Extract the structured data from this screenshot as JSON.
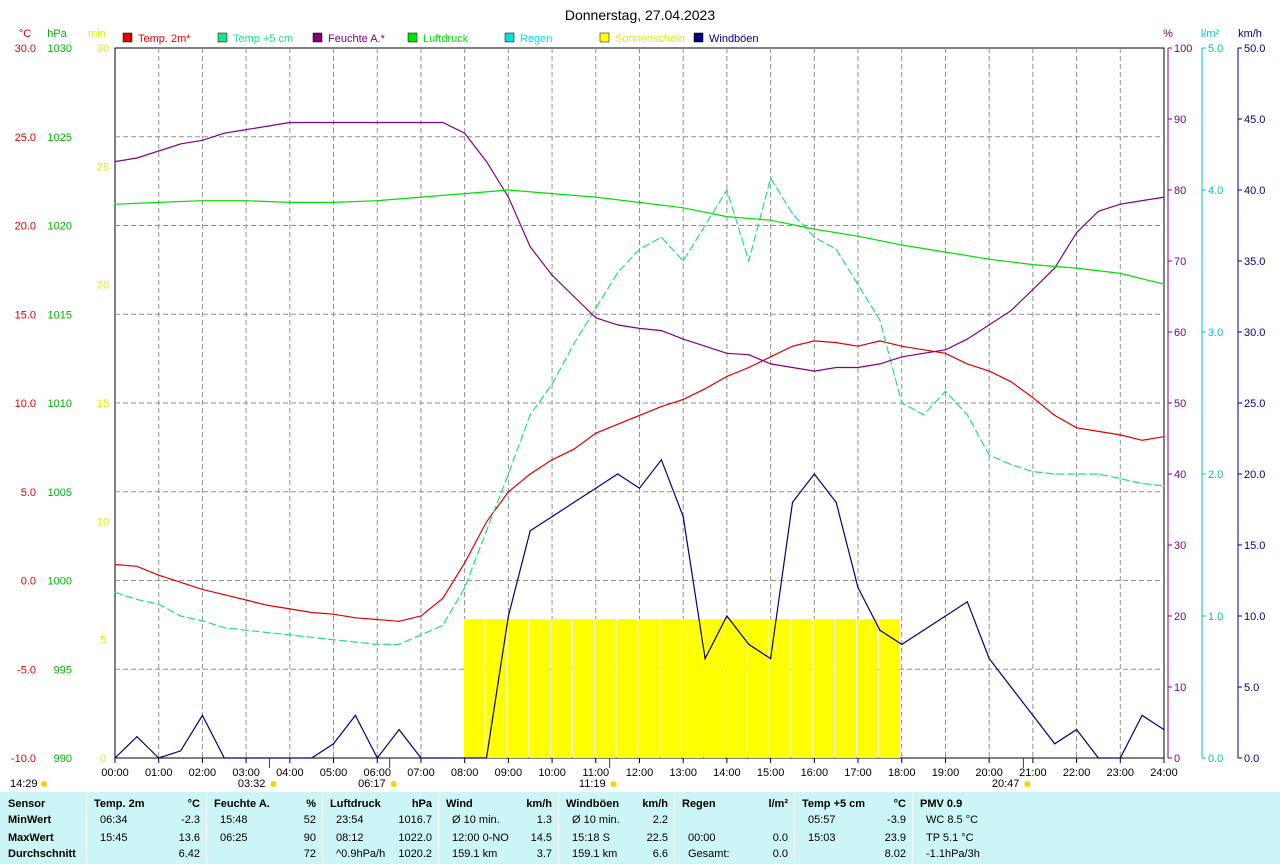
{
  "title": "Donnerstag, 27.04.2023",
  "legend": [
    {
      "label": "Temp. 2m*",
      "color": "#e00000"
    },
    {
      "label": "Temp +5 cm",
      "color": "#20e080"
    },
    {
      "label": "Feuchte A.*",
      "color": "#800080"
    },
    {
      "label": "Luftdruck",
      "color": "#00e000"
    },
    {
      "label": "Regen",
      "color": "#00e0e0"
    },
    {
      "label": "Sonnenschein",
      "color": "#ffff00"
    },
    {
      "label": "Windböen",
      "color": "#000080"
    }
  ],
  "axes": {
    "celsius": {
      "unit": "°C",
      "ticks": [
        "30.0",
        "25.0",
        "20.0",
        "15.0",
        "10.0",
        "5.0",
        "0.0",
        "-5.0",
        "-10.0"
      ],
      "color": "#e00000"
    },
    "hpa": {
      "unit": "hPa",
      "ticks": [
        "1030",
        "1025",
        "1020",
        "1015",
        "1010",
        "1005",
        "1000",
        "995",
        "990"
      ],
      "color": "#00b000"
    },
    "min": {
      "unit": "min",
      "ticks": [
        "30",
        "25",
        "20",
        "15",
        "10",
        "5",
        "0"
      ],
      "color": "#e8e800"
    },
    "percent": {
      "unit": "%",
      "ticks": [
        "100",
        "90",
        "80",
        "70",
        "60",
        "50",
        "40",
        "30",
        "20",
        "10",
        "0"
      ],
      "color": "#800080"
    },
    "rain": {
      "unit": "l/m²",
      "ticks": [
        "5.0",
        "4.0",
        "3.0",
        "2.0",
        "1.0",
        "0.0"
      ],
      "color": "#00c0c0"
    },
    "wind": {
      "unit": "km/h",
      "ticks": [
        "50.0",
        "45.0",
        "40.0",
        "35.0",
        "30.0",
        "25.0",
        "20.0",
        "15.0",
        "10.0",
        "5.0",
        "0.0"
      ],
      "color": "#000080"
    },
    "x_ticks": [
      "00:00",
      "01:00",
      "02:00",
      "03:00",
      "04:00",
      "05:00",
      "06:00",
      "07:00",
      "08:00",
      "09:00",
      "10:00",
      "11:00",
      "12:00",
      "13:00",
      "14:00",
      "15:00",
      "16:00",
      "17:00",
      "18:00",
      "19:00",
      "20:00",
      "21:00",
      "22:00",
      "23:00",
      "24:00"
    ]
  },
  "markers": {
    "left_time": "14:29",
    "moonrise": "03:32",
    "sunrise": "06:17",
    "noon": "11:19",
    "sunset": "20:47"
  },
  "chart_data": {
    "type": "line",
    "title": "Donnerstag, 27.04.2023",
    "x_unit": "hours",
    "xlim": [
      0,
      24
    ],
    "series": [
      {
        "name": "Temp. 2m*",
        "axis": "celsius",
        "ylim": [
          -10,
          30
        ],
        "color": "#e00000",
        "x": [
          0,
          0.5,
          1,
          1.5,
          2,
          2.5,
          3,
          3.5,
          4,
          4.5,
          5,
          5.5,
          6,
          6.5,
          7,
          7.5,
          8,
          8.5,
          9,
          9.5,
          10,
          10.5,
          11,
          11.5,
          12,
          12.5,
          13,
          13.5,
          14,
          14.5,
          15,
          15.5,
          16,
          16.5,
          17,
          17.5,
          18,
          18.5,
          19,
          19.5,
          20,
          20.5,
          21,
          21.5,
          22,
          22.5,
          23,
          23.5,
          24
        ],
        "y": [
          0.9,
          0.8,
          0.3,
          -0.1,
          -0.5,
          -0.8,
          -1.1,
          -1.4,
          -1.6,
          -1.8,
          -1.9,
          -2.1,
          -2.2,
          -2.3,
          -2.0,
          -1.0,
          1.0,
          3.3,
          5.0,
          6.0,
          6.8,
          7.4,
          8.3,
          8.8,
          9.3,
          9.8,
          10.2,
          10.8,
          11.5,
          12.0,
          12.6,
          13.2,
          13.5,
          13.4,
          13.2,
          13.5,
          13.2,
          13.0,
          12.8,
          12.2,
          11.8,
          11.2,
          10.3,
          9.3,
          8.6,
          8.4,
          8.2,
          7.9,
          8.1
        ]
      },
      {
        "name": "Temp +5 cm",
        "axis": "min",
        "ylim": [
          0,
          30
        ],
        "color": "#20e080",
        "x": [
          0,
          0.5,
          1,
          1.5,
          2,
          2.5,
          3,
          3.5,
          4,
          4.5,
          5,
          5.5,
          6,
          6.5,
          7,
          7.5,
          8,
          8.5,
          9,
          9.5,
          10,
          10.5,
          11,
          11.5,
          12,
          12.5,
          13,
          13.5,
          14,
          14.5,
          15,
          15.5,
          16,
          16.5,
          17,
          17.5,
          18,
          18.5,
          19,
          19.5,
          20,
          20.5,
          21,
          21.5,
          22,
          22.5,
          23,
          23.5,
          24
        ],
        "y": [
          7,
          6.7,
          6.5,
          6,
          5.8,
          5.5,
          5.4,
          5.3,
          5.2,
          5.1,
          5,
          4.9,
          4.8,
          4.8,
          5.2,
          5.6,
          7.2,
          9.6,
          12,
          14.5,
          15.8,
          17.5,
          19,
          20.5,
          21.5,
          22,
          21,
          22.5,
          24,
          21,
          24.5,
          23,
          22,
          21.5,
          20,
          18.5,
          15,
          14.5,
          15.5,
          14.5,
          12.8,
          12.4,
          12.1,
          12.0,
          12.0,
          12.0,
          11.8,
          11.6,
          11.5
        ]
      },
      {
        "name": "Feuchte A.*",
        "axis": "percent",
        "ylim": [
          0,
          100
        ],
        "color": "#800080",
        "x": [
          0,
          0.5,
          1,
          1.5,
          2,
          2.5,
          3,
          3.5,
          4,
          4.5,
          5,
          5.5,
          6,
          6.5,
          7,
          7.5,
          8,
          8.5,
          9,
          9.5,
          10,
          10.5,
          11,
          11.5,
          12,
          12.5,
          13,
          13.5,
          14,
          14.5,
          15,
          15.5,
          16,
          16.5,
          17,
          17.5,
          18,
          18.5,
          19,
          19.5,
          20,
          20.5,
          21,
          21.5,
          22,
          22.5,
          23,
          23.5,
          24
        ],
        "y": [
          84,
          84.5,
          85.5,
          86.5,
          87,
          88,
          88.5,
          89,
          89.5,
          89.5,
          89.5,
          89.5,
          89.5,
          89.5,
          89.5,
          89.5,
          88,
          84,
          79,
          72,
          68,
          65,
          62,
          61,
          60.5,
          60.2,
          59,
          58,
          57,
          56.8,
          55.5,
          55,
          54.5,
          55,
          55,
          55.5,
          56.5,
          57,
          57.5,
          59,
          61,
          63,
          66,
          69,
          74,
          77,
          78,
          78.5,
          79
        ]
      },
      {
        "name": "Luftdruck",
        "axis": "hpa",
        "ylim": [
          990,
          1030
        ],
        "color": "#00e000",
        "x": [
          0,
          1,
          2,
          3,
          4,
          5,
          6,
          7,
          8,
          9,
          10,
          11,
          12,
          13,
          14,
          15,
          16,
          17,
          18,
          19,
          20,
          21,
          22,
          23,
          24
        ],
        "y": [
          1021.2,
          1021.3,
          1021.4,
          1021.4,
          1021.3,
          1021.3,
          1021.4,
          1021.6,
          1021.8,
          1022.0,
          1021.8,
          1021.6,
          1021.3,
          1021.0,
          1020.5,
          1020.3,
          1019.8,
          1019.4,
          1018.9,
          1018.5,
          1018.1,
          1017.8,
          1017.6,
          1017.3,
          1016.7
        ]
      },
      {
        "name": "Windböen",
        "axis": "wind",
        "ylim": [
          0,
          50
        ],
        "color": "#000080",
        "x": [
          0,
          0.5,
          1,
          1.5,
          2,
          2.5,
          3,
          3.5,
          4,
          4.5,
          5,
          5.5,
          6,
          6.5,
          7,
          7.5,
          8,
          8.5,
          9,
          9.5,
          10,
          10.5,
          11,
          11.5,
          12,
          12.5,
          13,
          13.5,
          14,
          14.5,
          15,
          15.5,
          16,
          16.5,
          17,
          17.5,
          18,
          18.5,
          19,
          19.5,
          20,
          20.5,
          21,
          21.5,
          22,
          22.5,
          23,
          23.5,
          24
        ],
        "y": [
          0,
          1.5,
          0,
          0.5,
          3,
          0,
          0,
          0,
          0,
          0,
          1,
          3,
          0,
          2,
          0,
          0,
          0,
          0,
          10,
          16,
          17,
          18,
          19,
          20,
          19,
          21,
          17,
          7,
          10,
          8,
          7,
          18,
          20,
          18,
          12,
          9,
          8,
          9,
          10,
          11,
          7,
          5,
          3,
          1,
          2,
          0,
          0,
          3,
          2
        ]
      },
      {
        "name": "Sonnenschein",
        "axis": "min",
        "ylim": [
          0,
          30
        ],
        "color": "#ffff00",
        "kind": "bar",
        "x": [
          8,
          8.5,
          9,
          9.5,
          10,
          10.5,
          11,
          11.5,
          12,
          12.5,
          13,
          13.5,
          14,
          14.5,
          15,
          15.5,
          16,
          16.5,
          17,
          17.5
        ],
        "y": [
          3,
          3,
          3,
          3,
          3,
          3,
          3,
          3,
          3,
          3,
          3,
          3,
          3,
          3,
          3,
          3,
          3,
          3,
          3,
          3
        ]
      }
    ]
  },
  "stats": {
    "rows": [
      "Sensor",
      "MinWert",
      "MaxWert",
      "Durchschnitt"
    ],
    "columns": [
      {
        "title": "Temp. 2m",
        "unit": "°C",
        "cells": [
          [
            "06:34",
            "-2.3"
          ],
          [
            "15:45",
            "13.6"
          ],
          [
            "",
            "6.42"
          ]
        ]
      },
      {
        "title": "Feuchte A.",
        "unit": "%",
        "cells": [
          [
            "15:48",
            "52"
          ],
          [
            "06:25",
            "90"
          ],
          [
            "",
            "72"
          ]
        ]
      },
      {
        "title": "Luftdruck",
        "unit": "hPa",
        "cells": [
          [
            "23:54",
            "1016.7"
          ],
          [
            "08:12",
            "1022.0"
          ],
          [
            "^0.9hPa/h",
            "1020.2"
          ]
        ]
      },
      {
        "title": "Wind",
        "unit": "km/h",
        "cells": [
          [
            "Ø 10 min.",
            "1.3"
          ],
          [
            "12:00    0-NO",
            "14.5"
          ],
          [
            "159.1 km",
            "3.7"
          ]
        ]
      },
      {
        "title": "Windböen",
        "unit": "km/h",
        "cells": [
          [
            "Ø 10 min.",
            "2.2"
          ],
          [
            "15:18      S",
            "22.5"
          ],
          [
            "159.1 km",
            "6.6"
          ]
        ]
      },
      {
        "title": "Regen",
        "unit": "l/m²",
        "cells": [
          [
            "",
            ""
          ],
          [
            "00:00",
            "0.0"
          ],
          [
            "Gesamt:",
            "0.0"
          ]
        ]
      },
      {
        "title": "Temp +5 cm",
        "unit": "°C",
        "cells": [
          [
            "05:57",
            "-3.9"
          ],
          [
            "15:03",
            "23.9"
          ],
          [
            "",
            "8.02"
          ]
        ]
      },
      {
        "title": "PMV 0.9",
        "unit": "",
        "cells": [
          [
            "WC 8.5 °C",
            ""
          ],
          [
            "TP 5.1 °C",
            ""
          ],
          [
            "-1.1hPa/3h",
            ""
          ]
        ]
      }
    ]
  }
}
